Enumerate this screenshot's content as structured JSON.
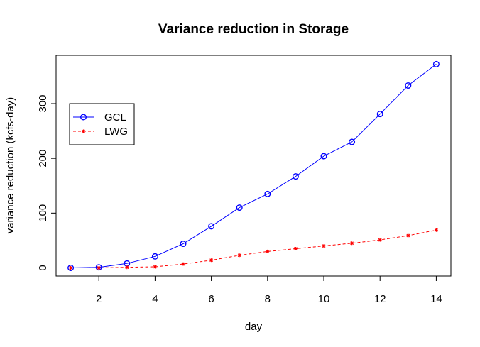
{
  "chart_data": {
    "type": "line",
    "title": "Variance reduction in Storage",
    "xlabel": "day",
    "ylabel": "variance reduction (kcfs-day)",
    "x": [
      1,
      2,
      3,
      4,
      5,
      6,
      7,
      8,
      9,
      10,
      11,
      12,
      13,
      14
    ],
    "xlim": [
      0.48,
      14.52
    ],
    "ylim": [
      -14.9,
      388.1
    ],
    "xticks": [
      2,
      4,
      6,
      8,
      10,
      12,
      14
    ],
    "xtick_labels": [
      "2",
      "4",
      "6",
      "8",
      "10",
      "12",
      "14"
    ],
    "yticks": [
      0,
      100,
      200,
      300
    ],
    "ytick_labels": [
      "0",
      "100",
      "200",
      "300"
    ],
    "grid": false,
    "legend_position": "top-left",
    "series": [
      {
        "name": "GCL",
        "color": "#0000ff",
        "line_style": "solid",
        "marker": "circle",
        "values": [
          0,
          1,
          8,
          21,
          44,
          76,
          110,
          135,
          167,
          204,
          230,
          281,
          333,
          372
        ]
      },
      {
        "name": "LWG",
        "color": "#ff0000",
        "line_style": "dashed",
        "marker": "star",
        "values": [
          0,
          0,
          1,
          2,
          7,
          14,
          23,
          30,
          35,
          40,
          45,
          51,
          59,
          69
        ]
      }
    ]
  }
}
